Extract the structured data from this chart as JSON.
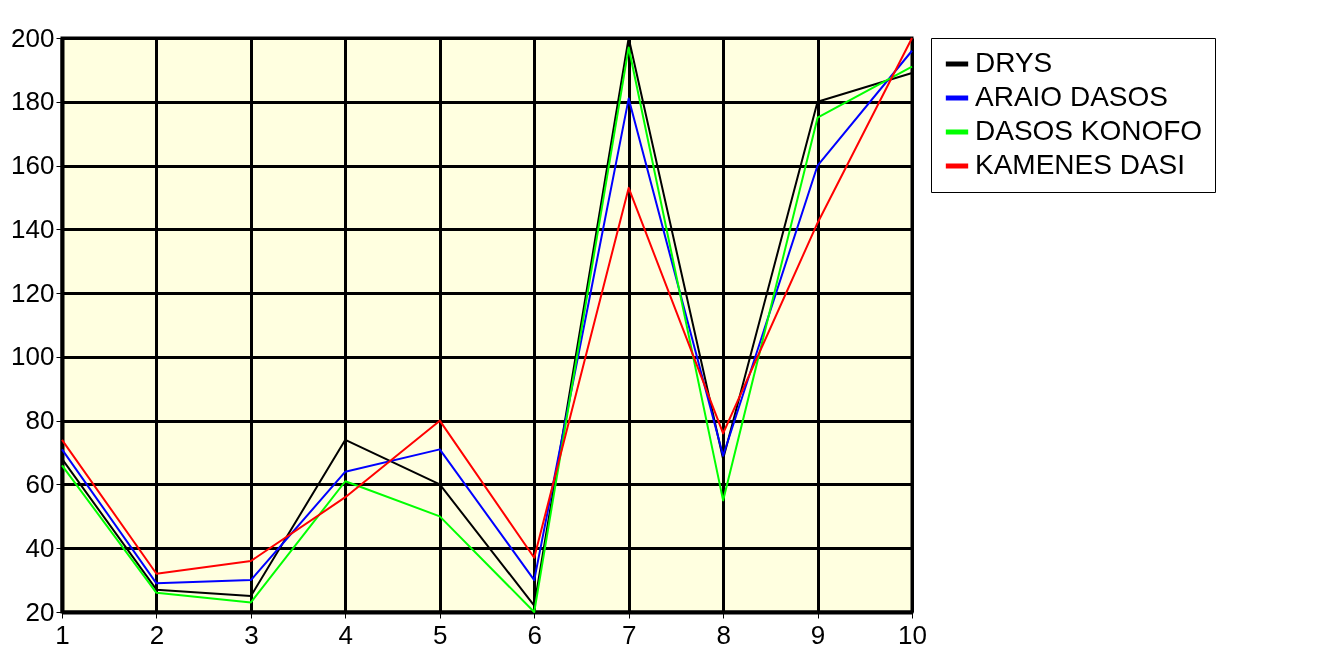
{
  "chart_data": {
    "type": "line",
    "x": [
      1,
      2,
      3,
      4,
      5,
      6,
      7,
      8,
      9,
      10
    ],
    "series": [
      {
        "name": "DRYS",
        "color": "#000000",
        "values": [
          68,
          27,
          25,
          74,
          60,
          22,
          200,
          68,
          180,
          189
        ]
      },
      {
        "name": "ARAIO DASOS",
        "color": "#0000ff",
        "values": [
          71,
          29,
          30,
          64,
          71,
          30,
          181,
          69,
          160,
          196
        ]
      },
      {
        "name": "DASOS KONOFO",
        "color": "#00ff00",
        "values": [
          66,
          26,
          23,
          61,
          50,
          20,
          197,
          55,
          175,
          191
        ]
      },
      {
        "name": "KAMENES DASI",
        "color": "#ff0000",
        "values": [
          74,
          32,
          36,
          56,
          80,
          37,
          153,
          76,
          142,
          200
        ]
      }
    ],
    "xlim": [
      1,
      10
    ],
    "xticks": [
      1,
      2,
      3,
      4,
      5,
      6,
      7,
      8,
      9,
      10
    ],
    "ylim": [
      20,
      200
    ],
    "yticks": [
      20,
      40,
      60,
      80,
      100,
      120,
      140,
      160,
      180,
      200
    ],
    "grid": true,
    "legend": "right",
    "marker": "none",
    "line_style": "solid"
  }
}
